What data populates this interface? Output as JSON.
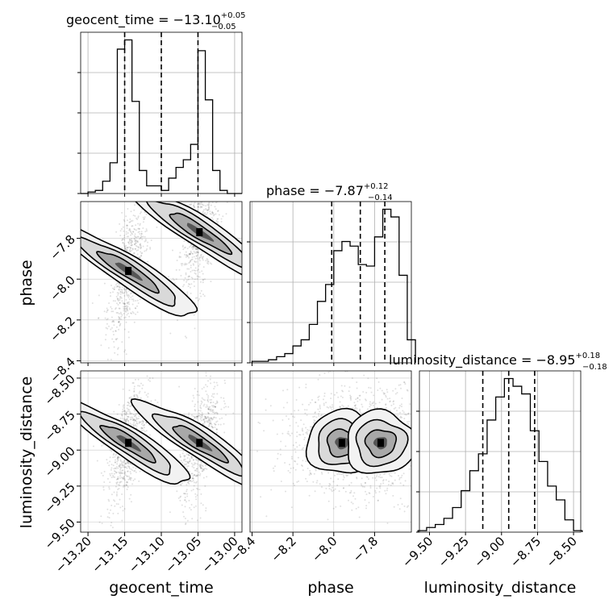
{
  "chart_data": {
    "type": "corner",
    "parameters": [
      "geocent_time",
      "phase",
      "luminosity_distance"
    ],
    "titles": {
      "geocent_time": {
        "label": "geocent_time",
        "median": "−13.10",
        "plus": "+0.05",
        "minus": "−0.05"
      },
      "phase": {
        "label": "phase",
        "median": "−7.87",
        "plus": "+0.12",
        "minus": "−0.14"
      },
      "luminosity_distance": {
        "label": "luminosity_distance",
        "median": "−8.95",
        "plus": "+0.18",
        "minus": "−0.18"
      }
    },
    "ranges": {
      "geocent_time": [
        -13.21,
        -12.99
      ],
      "phase": [
        -8.41,
        -7.62
      ],
      "luminosity_distance": [
        -9.57,
        -8.45
      ]
    },
    "ticks": {
      "geocent_time": {
        "values": [
          -13.2,
          -13.15,
          -13.1,
          -13.05,
          -13.0
        ],
        "labels": [
          "−13.20",
          "−13.15",
          "−13.10",
          "−13.05",
          "−13.00"
        ]
      },
      "phase": {
        "values": [
          -8.4,
          -8.2,
          -8.0,
          -7.8
        ],
        "labels": [
          "−8.4",
          "−8.2",
          "−8.0",
          "−7.8"
        ]
      },
      "luminosity_distance": {
        "values": [
          -9.5,
          -9.25,
          -9.0,
          -8.75,
          -8.5
        ],
        "labels": [
          "−9.50",
          "−9.25",
          "−9.00",
          "−8.75",
          "−8.50"
        ]
      }
    },
    "quantiles": {
      "geocent_time": [
        -13.15,
        -13.1,
        -13.05
      ],
      "phase": [
        -8.01,
        -7.87,
        -7.75
      ],
      "luminosity_distance": [
        -9.13,
        -8.95,
        -8.77
      ]
    },
    "histograms": {
      "geocent_time": {
        "edges": [
          -13.21,
          -13.2,
          -13.19,
          -13.18,
          -13.17,
          -13.16,
          -13.15,
          -13.14,
          -13.13,
          -13.12,
          -13.11,
          -13.1,
          -13.09,
          -13.08,
          -13.07,
          -13.06,
          -13.05,
          -13.04,
          -13.03,
          -13.02,
          -13.01,
          -13.0,
          -12.99
        ],
        "counts": [
          0,
          1,
          2,
          8,
          20,
          94,
          100,
          60,
          15,
          5,
          5,
          2,
          10,
          17,
          22,
          32,
          93,
          61,
          15,
          2,
          0,
          0
        ]
      },
      "phase": {
        "edges": [
          -8.4,
          -8.36,
          -8.32,
          -8.28,
          -8.24,
          -8.2,
          -8.16,
          -8.12,
          -8.08,
          -8.04,
          -8.0,
          -7.96,
          -7.92,
          -7.88,
          -7.84,
          -7.8,
          -7.76,
          -7.72,
          -7.68,
          -7.64,
          -7.6
        ],
        "counts": [
          1,
          1,
          2,
          4,
          6,
          11,
          15,
          25,
          40,
          51,
          73,
          79,
          76,
          64,
          63,
          82,
          100,
          95,
          57,
          15
        ]
      },
      "luminosity_distance": {
        "edges": [
          -9.58,
          -9.52,
          -9.46,
          -9.4,
          -9.34,
          -9.28,
          -9.22,
          -9.16,
          -9.1,
          -9.04,
          -8.98,
          -8.92,
          -8.86,
          -8.8,
          -8.74,
          -8.68,
          -8.62,
          -8.56,
          -8.5,
          -8.44
        ],
        "counts": [
          1,
          3,
          5,
          9,
          16,
          27,
          40,
          51,
          73,
          88,
          100,
          95,
          90,
          66,
          46,
          30,
          21,
          8,
          1
        ]
      }
    },
    "clusters": {
      "geocent_time": [
        -13.145,
        -13.048
      ],
      "phase": [
        -7.96,
        -7.77
      ],
      "luminosity_distance": [
        -8.95,
        -8.95
      ]
    },
    "sigma": {
      "geocent_time": 0.014,
      "phase": 0.15,
      "luminosity_distance": 0.19
    }
  }
}
